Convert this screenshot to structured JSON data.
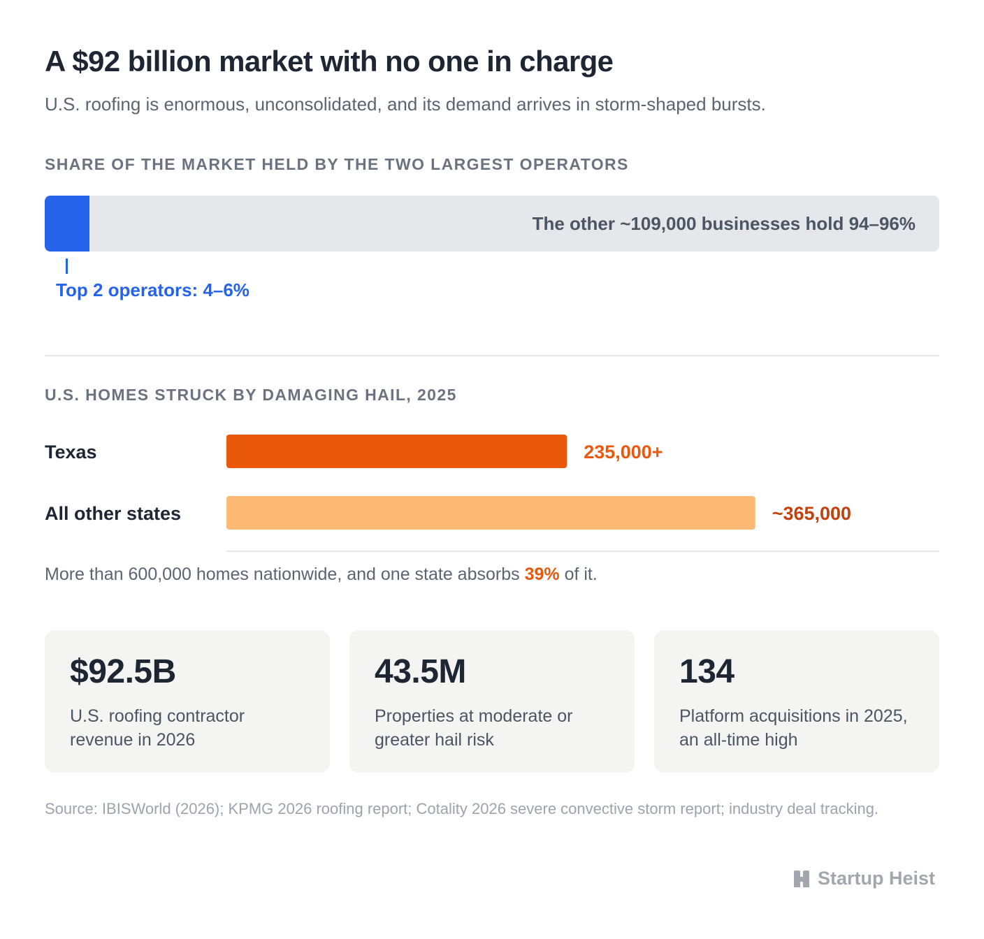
{
  "header": {
    "title": "A $92 billion market with no one in charge",
    "subtitle": "U.S. roofing is enormous, unconsolidated, and its demand arrives in storm-shaped bursts."
  },
  "colors": {
    "blue": "#2563eb",
    "orange_dark": "#ea580c",
    "orange_light": "#fdba74",
    "orange_label": "#c2410c"
  },
  "chart_data": [
    {
      "type": "bar",
      "title": "SHARE OF THE MARKET HELD BY THE TWO LARGEST OPERATORS",
      "unit": "%",
      "segments": [
        {
          "label": "Top 2 operators: 4–6%",
          "value": 5
        },
        {
          "label": "The other ~109,000 businesses hold 94–96%",
          "value": 95
        }
      ],
      "xlim": [
        0,
        100
      ]
    },
    {
      "type": "bar",
      "title": "U.S. HOMES STRUCK BY DAMAGING HAIL, 2025",
      "categories": [
        "Texas",
        "All other states"
      ],
      "values": [
        235000,
        365000
      ],
      "value_labels": [
        "235,000+",
        "~365,000"
      ],
      "xlim": [
        0,
        410000
      ]
    }
  ],
  "hail_note": {
    "before": "More than 600,000 homes nationwide, and one state absorbs ",
    "highlight": "39%",
    "after": " of it."
  },
  "stats": [
    {
      "value": "$92.5B",
      "desc": "U.S. roofing contractor revenue in 2026"
    },
    {
      "value": "43.5M",
      "desc": "Properties at moderate or greater hail risk"
    },
    {
      "value": "134",
      "desc": "Platform acquisitions in 2025, an all-time high"
    }
  ],
  "source": "Source: IBISWorld (2026); KPMG 2026 roofing report; Cotality 2026 severe convective storm report; industry deal tracking.",
  "brand": {
    "name": "Startup Heist",
    "icon": "building-icon"
  }
}
